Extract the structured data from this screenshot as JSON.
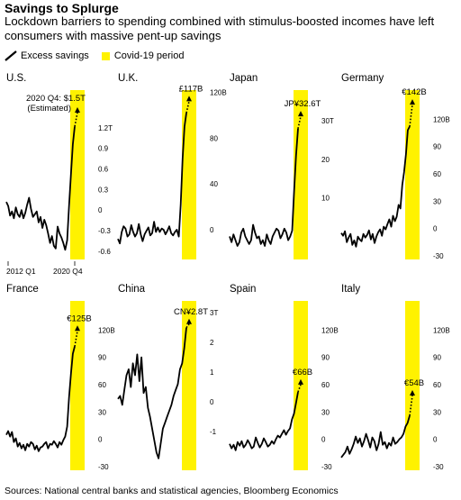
{
  "title": "Savings to Splurge",
  "subtitle": "Lockdown barriers to spending combined with stimulus-boosted incomes have left consumers with massive pent-up savings",
  "legend": {
    "excess_label": "Excess savings",
    "covid_label": "Covid-19 period",
    "covid_color": "#FFF200",
    "line_color": "#000000"
  },
  "source": "Sources: National central banks and statistical agencies, Bloomberg Economics",
  "chart_data": [
    {
      "type": "line",
      "title": "U.S.",
      "unit": "T",
      "ylim": [
        -0.72,
        1.75
      ],
      "yticks": [
        -0.6,
        -0.3,
        0,
        0.3,
        0.6,
        0.9,
        1.2
      ],
      "ytick_labels": [
        "-0.6",
        "-0.3",
        "0",
        "0.3",
        "0.6",
        "0.9",
        "1.2T"
      ],
      "xtick_labels": [
        "2012 Q1",
        "2020 Q4"
      ],
      "annotation": "2020 Q4: $1.5T",
      "annotation2": "(Estimated)",
      "last_value": 1.5,
      "values": [
        0.12,
        0.06,
        -0.08,
        -0.02,
        -0.12,
        0.04,
        -0.06,
        -0.1,
        0.0,
        -0.12,
        -0.04,
        0.08,
        0.18,
        0.02,
        -0.1,
        -0.06,
        -0.02,
        -0.18,
        -0.1,
        -0.26,
        -0.14,
        -0.22,
        -0.34,
        -0.48,
        -0.38,
        -0.52,
        -0.56,
        -0.24,
        -0.34,
        -0.4,
        -0.48,
        -0.58,
        -0.44,
        0.06,
        0.52,
        0.96,
        1.22
      ]
    },
    {
      "type": "line",
      "title": "U.K.",
      "unit": "B",
      "ylim": [
        -26,
        122
      ],
      "yticks": [
        0,
        40,
        80,
        120
      ],
      "ytick_labels": [
        "0",
        "40",
        "80",
        "120B"
      ],
      "annotation": "£117B",
      "last_value": 117,
      "values": [
        -8,
        -12,
        -2,
        3,
        1,
        -6,
        -4,
        4,
        -2,
        -6,
        -3,
        5,
        -4,
        -10,
        -4,
        -1,
        2,
        -5,
        -3,
        7,
        -2,
        2,
        -2,
        1,
        0,
        -4,
        -1,
        3,
        -3,
        -5,
        -2,
        0,
        -6,
        22,
        62,
        90,
        102
      ]
    },
    {
      "type": "line",
      "title": "Japan",
      "unit": "T",
      "ylim": [
        -6,
        38
      ],
      "yticks": [
        10,
        20,
        30
      ],
      "ytick_labels": [
        "10",
        "20",
        "30T"
      ],
      "annotation": "JP¥32.6T",
      "last_value": 32.6,
      "values": [
        0,
        -1.5,
        0.5,
        -1,
        -2.5,
        -1.5,
        1,
        2,
        0,
        -1,
        -2,
        -1,
        3,
        1,
        -0.5,
        0,
        -2,
        -1,
        -2.5,
        0.5,
        -1,
        -2,
        0,
        1,
        2,
        1.5,
        -0.5,
        0.5,
        2,
        1,
        -1,
        0,
        1.5,
        12,
        21,
        28
      ]
    },
    {
      "type": "line",
      "title": "Germany",
      "unit": "B",
      "ylim": [
        -34,
        152
      ],
      "yticks": [
        -30,
        0,
        30,
        60,
        90,
        120
      ],
      "ytick_labels": [
        "-30",
        "0",
        "30",
        "60",
        "90",
        "120B"
      ],
      "annotation": "€142B",
      "last_value": 142,
      "values": [
        -5,
        -8,
        -3,
        -15,
        -10,
        -6,
        -18,
        -13,
        -20,
        -9,
        -12,
        -14,
        -6,
        -10,
        -7,
        -2,
        -12,
        -6,
        -16,
        -9,
        -4,
        -1,
        -8,
        2,
        -1,
        5,
        10,
        2,
        14,
        8,
        13,
        26,
        22,
        48,
        62,
        82,
        108,
        112
      ]
    },
    {
      "type": "line",
      "title": "France",
      "unit": "B",
      "ylim": [
        -34,
        152
      ],
      "yticks": [
        -30,
        0,
        30,
        60,
        90,
        120
      ],
      "ytick_labels": [
        "-30",
        "0",
        "30",
        "60",
        "90",
        "120B"
      ],
      "annotation": "€125B",
      "last_value": 125,
      "values": [
        5,
        9,
        3,
        8,
        -3,
        1,
        -8,
        -4,
        -10,
        -6,
        -12,
        -5,
        -8,
        -3,
        -5,
        -11,
        -7,
        -13,
        -9,
        -8,
        -5,
        -3,
        -10,
        -5,
        -6,
        -2,
        -5,
        -9,
        -3,
        -6,
        -1,
        3,
        14,
        46,
        72,
        94,
        102
      ]
    },
    {
      "type": "line",
      "title": "China",
      "unit": "T",
      "ylim": [
        -2.3,
        3.4
      ],
      "yticks": [
        -1,
        0,
        1,
        2,
        3
      ],
      "ytick_labels": [
        "-1",
        "0",
        "1",
        "2",
        "3T"
      ],
      "annotation": "CN¥2.8T",
      "last_value": 2.8,
      "values": [
        0.1,
        0.2,
        -0.1,
        0.4,
        0.9,
        1.1,
        0.5,
        1.3,
        0.9,
        1.6,
        0.7,
        1.5,
        0.3,
        0.5,
        -0.2,
        -0.5,
        -0.9,
        -1.3,
        -1.7,
        -1.9,
        -1.4,
        -0.9,
        -0.7,
        -0.5,
        -0.3,
        -0.1,
        0.2,
        0.4,
        0.6,
        1.1,
        1.3,
        1.8,
        2.5
      ]
    },
    {
      "type": "line",
      "title": "Spain",
      "unit": "B",
      "ylim": [
        -34,
        152
      ],
      "yticks": [
        -30,
        0,
        30,
        60,
        90,
        120
      ],
      "ytick_labels": [
        "-30",
        "0",
        "30",
        "60",
        "90",
        "120B"
      ],
      "annotation": "€66B",
      "last_value": 66,
      "values": [
        -5,
        -10,
        -6,
        -12,
        -3,
        -7,
        -2,
        -9,
        -6,
        -1,
        -5,
        -10,
        -8,
        2,
        -4,
        -9,
        -5,
        1,
        -3,
        -8,
        -6,
        -2,
        -5,
        0,
        4,
        2,
        6,
        10,
        5,
        9,
        12,
        22,
        28,
        40,
        52
      ]
    },
    {
      "type": "line",
      "title": "Italy",
      "unit": "B",
      "ylim": [
        -34,
        152
      ],
      "yticks": [
        -30,
        0,
        30,
        60,
        90,
        120
      ],
      "ytick_labels": [
        "-30",
        "0",
        "30",
        "60",
        "90",
        "120B"
      ],
      "annotation": "€54B",
      "last_value": 54,
      "values": [
        -20,
        -17,
        -14,
        -8,
        -16,
        -11,
        -5,
        3,
        -4,
        1,
        -8,
        -2,
        6,
        -1,
        -9,
        2,
        -2,
        -12,
        -5,
        8,
        -6,
        -3,
        -10,
        -4,
        -7,
        2,
        -5,
        -3,
        0,
        2,
        6,
        14,
        18,
        26
      ]
    }
  ]
}
